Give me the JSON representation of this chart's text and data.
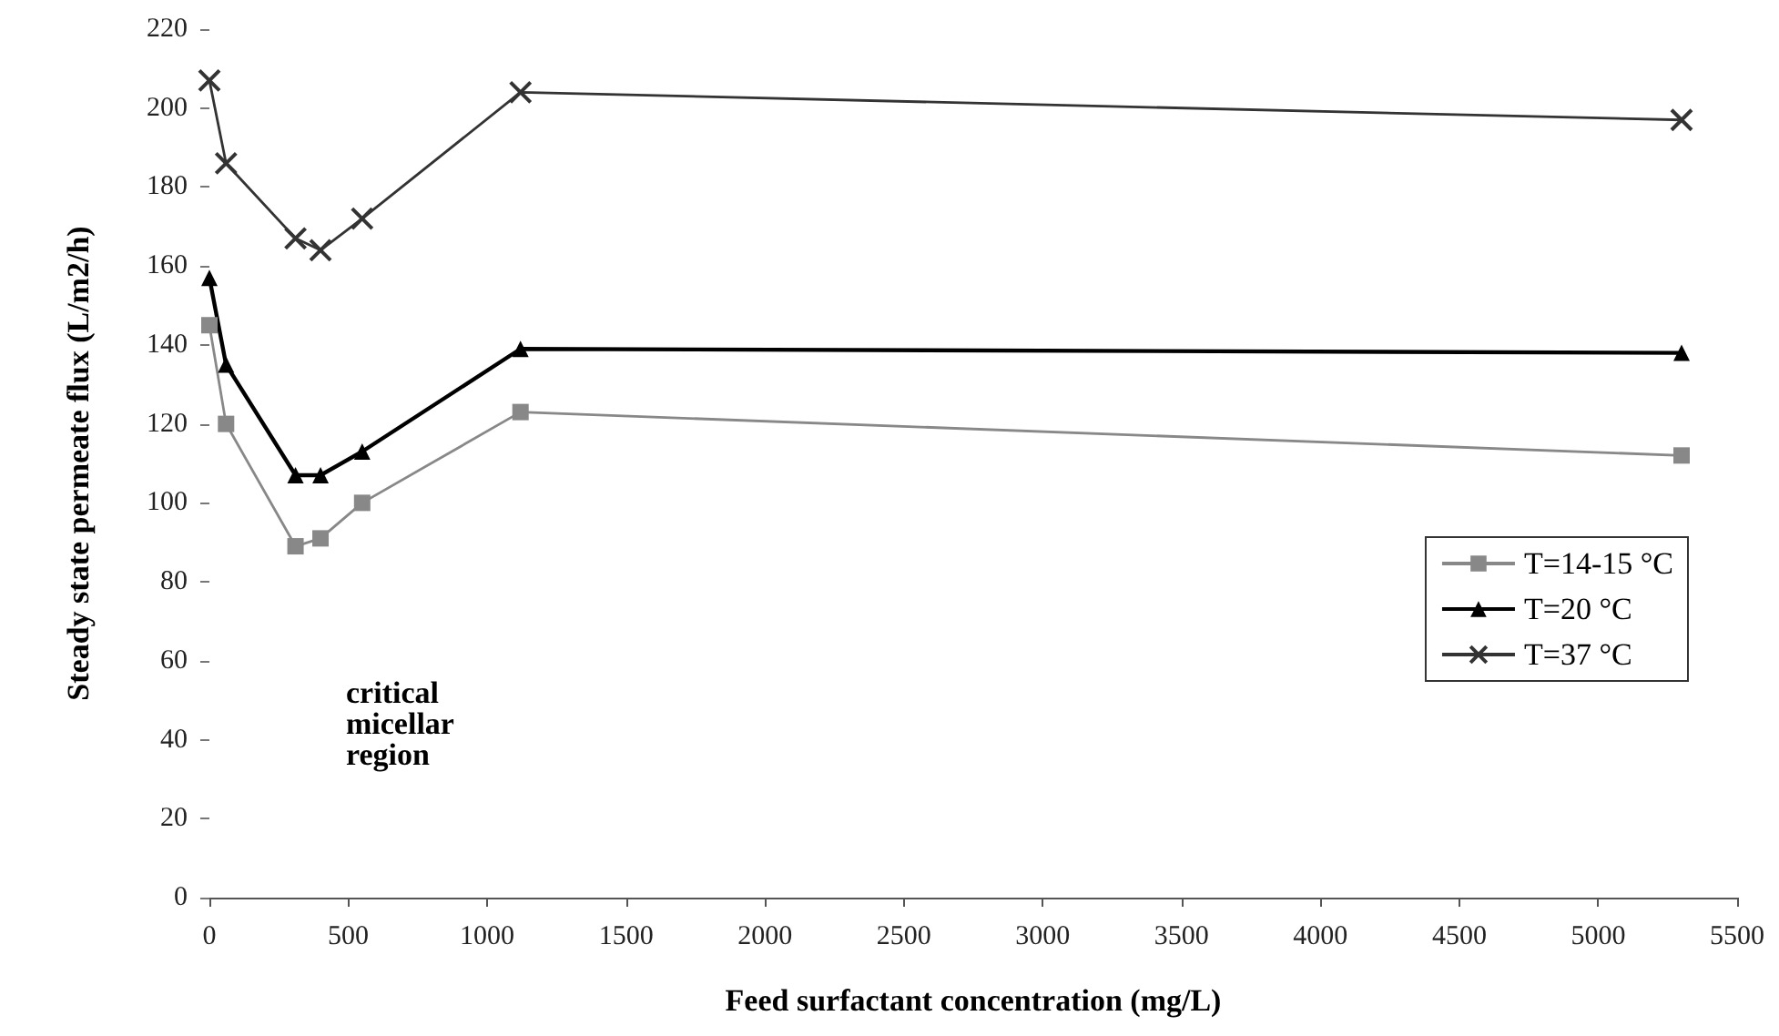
{
  "chart_data": {
    "type": "line",
    "xlabel": "Feed surfactant concentration (mg/L)",
    "ylabel": "Steady state permeate flux (L/m2/h)",
    "x": [
      0,
      60,
      310,
      400,
      550,
      1120,
      5300
    ],
    "series": [
      {
        "name": "T=14-15 °C",
        "color": "#888888",
        "marker": "square",
        "values": [
          145,
          120,
          89,
          91,
          100,
          123,
          112
        ]
      },
      {
        "name": "T=20 °C",
        "color": "#000000",
        "marker": "triangle",
        "values": [
          157,
          135,
          107,
          107,
          113,
          139,
          138
        ]
      },
      {
        "name": "T=37 °C",
        "color": "#333333",
        "marker": "cross",
        "values": [
          207,
          186,
          167,
          164,
          172,
          204,
          197
        ]
      }
    ],
    "xlim": [
      0,
      5500
    ],
    "xticks": [
      0,
      500,
      1000,
      1500,
      2000,
      2500,
      3000,
      3500,
      4000,
      4500,
      5000,
      5500
    ],
    "ylim": [
      0,
      220
    ],
    "yticks": [
      0,
      20,
      40,
      60,
      80,
      100,
      120,
      140,
      160,
      180,
      200,
      220
    ],
    "legend": "right",
    "grid": false,
    "line_style": "solid",
    "annotations": [
      "critical micellar region"
    ]
  }
}
